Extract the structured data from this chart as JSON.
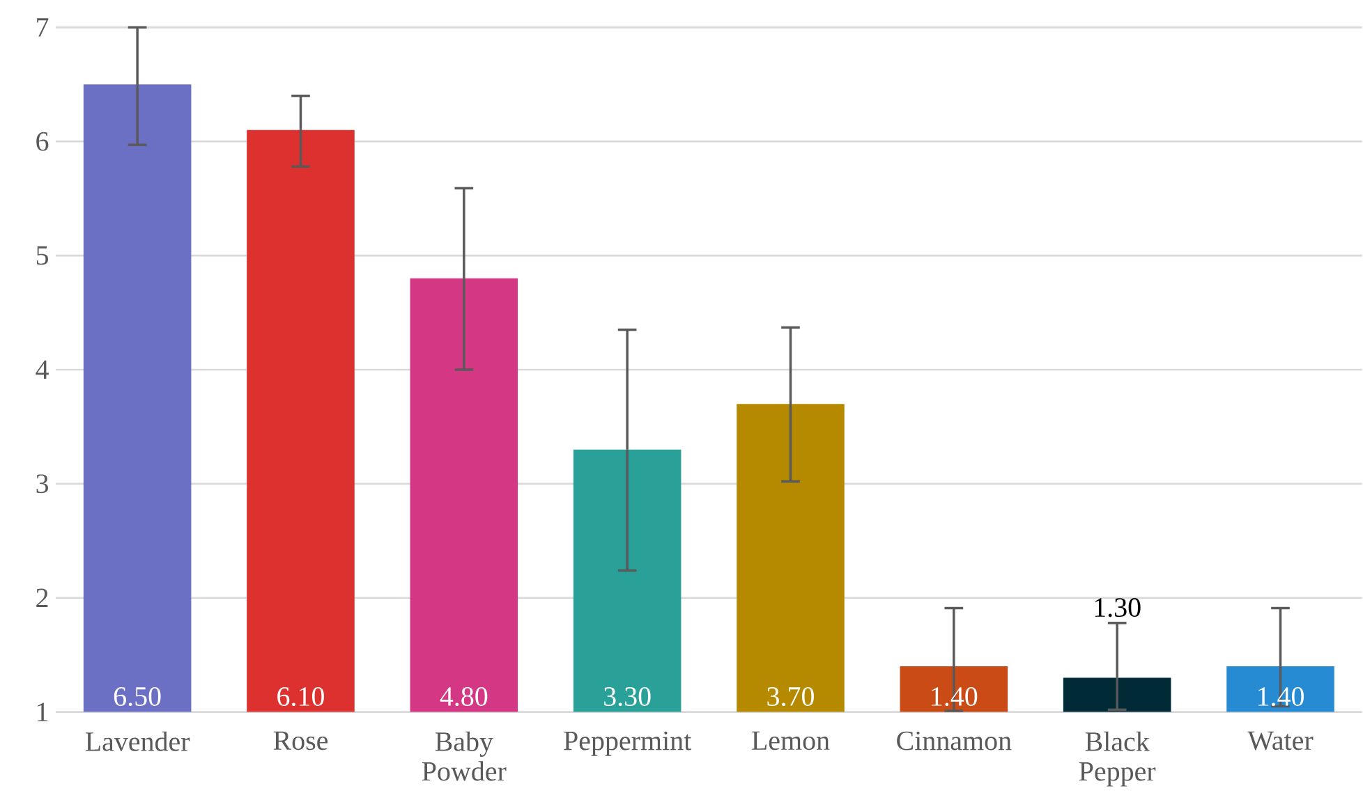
{
  "chart_data": {
    "type": "bar",
    "categories": [
      "Lavender",
      "Rose",
      "Baby Powder",
      "Peppermint",
      "Lemon",
      "Cinnamon",
      "Black Pepper",
      "Water"
    ],
    "values": [
      6.5,
      6.1,
      4.8,
      3.3,
      3.7,
      1.4,
      1.3,
      1.4
    ],
    "value_labels": [
      "6.50",
      "6.10",
      "4.80",
      "3.30",
      "3.70",
      "1.40",
      "1.30",
      "1.40"
    ],
    "colors": [
      "#6b70c4",
      "#dc312f",
      "#d43884",
      "#2aa198",
      "#b58900",
      "#cb4b16",
      "#002b36",
      "#268bd2"
    ],
    "errors": [
      [
        5.97,
        7.0
      ],
      [
        5.78,
        6.4
      ],
      [
        4.0,
        5.59
      ],
      [
        2.24,
        4.35
      ],
      [
        3.02,
        4.37
      ],
      [
        1.01,
        1.91
      ],
      [
        1.02,
        1.78
      ],
      [
        1.05,
        1.91
      ]
    ],
    "ylim": [
      1,
      7
    ],
    "yticks": [
      1,
      2,
      3,
      4,
      5,
      6,
      7
    ],
    "grid": "y"
  }
}
